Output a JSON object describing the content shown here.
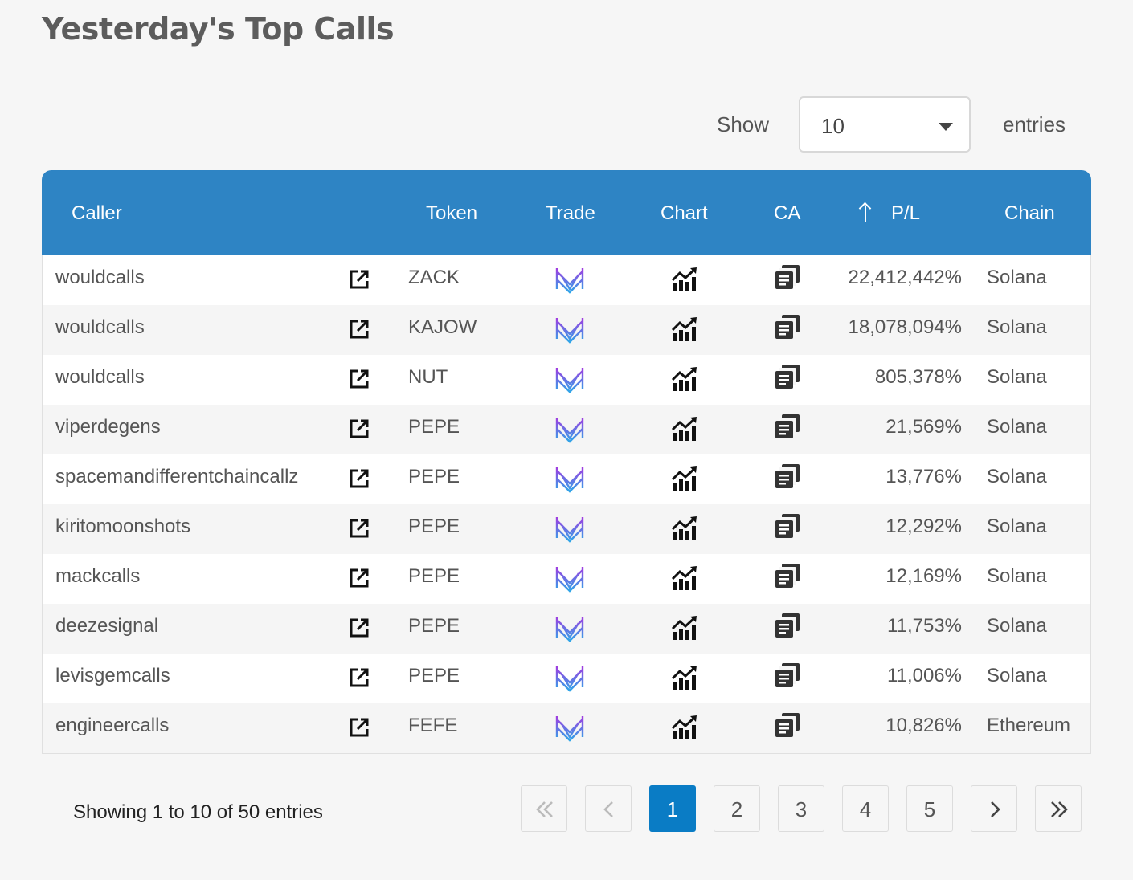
{
  "title": "Yesterday's Top Calls",
  "length_control": {
    "show_label": "Show",
    "selected": "10",
    "entries_label": "entries"
  },
  "table": {
    "columns": {
      "caller": "Caller",
      "token": "Token",
      "trade": "Trade",
      "chart": "Chart",
      "ca": "CA",
      "pl": "P/L",
      "chain": "Chain"
    },
    "sorted_column": "pl",
    "rows": [
      {
        "caller": "wouldcalls",
        "token": "ZACK",
        "pl": "22,412,442%",
        "chain": "Solana"
      },
      {
        "caller": "wouldcalls",
        "token": "KAJOW",
        "pl": "18,078,094%",
        "chain": "Solana"
      },
      {
        "caller": "wouldcalls",
        "token": "NUT",
        "pl": "805,378%",
        "chain": "Solana"
      },
      {
        "caller": "viperdegens",
        "token": "PEPE",
        "pl": "21,569%",
        "chain": "Solana"
      },
      {
        "caller": "spacemandifferentchaincallz",
        "token": "PEPE",
        "pl": "13,776%",
        "chain": "Solana"
      },
      {
        "caller": "kiritomoonshots",
        "token": "PEPE",
        "pl": "12,292%",
        "chain": "Solana"
      },
      {
        "caller": "mackcalls",
        "token": "PEPE",
        "pl": "12,169%",
        "chain": "Solana"
      },
      {
        "caller": "deezesignal",
        "token": "PEPE",
        "pl": "11,753%",
        "chain": "Solana"
      },
      {
        "caller": "levisgemcalls",
        "token": "PEPE",
        "pl": "11,006%",
        "chain": "Solana"
      },
      {
        "caller": "engineercalls",
        "token": "FEFE",
        "pl": "10,826%",
        "chain": "Ethereum"
      }
    ]
  },
  "icons": {
    "caller_link": "external-link-icon",
    "trade": "trade-logo-icon",
    "chart": "chart-icon",
    "ca": "copy-icon",
    "sort": "arrow-up-icon"
  },
  "colors": {
    "header_bg": "#2e84c4",
    "active_page": "#0a7cc5",
    "trade_icon_gradient": [
      "#a23be0",
      "#2fa6e8"
    ]
  },
  "footer": {
    "info": "Showing 1 to 10 of 50 entries",
    "pages": [
      "1",
      "2",
      "3",
      "4",
      "5"
    ],
    "current_page": "1"
  }
}
